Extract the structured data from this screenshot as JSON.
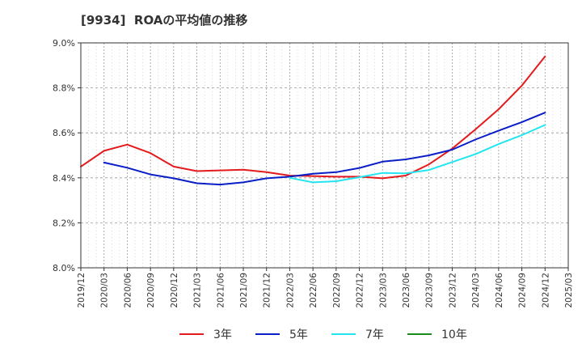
{
  "chart_data": {
    "type": "line",
    "title": "[9934]  ROAの平均値の推移",
    "xlabel": "",
    "ylabel": "",
    "x_ticks": [
      "2019/12",
      "2020/03",
      "2020/06",
      "2020/09",
      "2020/12",
      "2021/03",
      "2021/06",
      "2021/09",
      "2021/12",
      "2022/03",
      "2022/06",
      "2022/09",
      "2022/12",
      "2023/03",
      "2023/06",
      "2023/09",
      "2023/12",
      "2024/03",
      "2024/06",
      "2024/09",
      "2024/12",
      "2025/03"
    ],
    "y_ticks": [
      "8.0%",
      "8.2%",
      "8.4%",
      "8.6%",
      "8.8%",
      "9.0%"
    ],
    "ylim": [
      8.0,
      9.0
    ],
    "grid": true,
    "legend_position": "bottom",
    "series": [
      {
        "name": "3年",
        "color": "#e41a1c",
        "start_index": 0,
        "values": [
          8.45,
          8.52,
          8.548,
          8.51,
          8.45,
          8.43,
          8.433,
          8.436,
          8.425,
          8.41,
          8.408,
          8.405,
          8.405,
          8.398,
          8.41,
          8.46,
          8.53,
          8.615,
          8.705,
          8.81,
          8.94
        ]
      },
      {
        "name": "5年",
        "color": "#0a1ec8",
        "start_index": 1,
        "values": [
          8.468,
          8.445,
          8.415,
          8.398,
          8.376,
          8.37,
          8.38,
          8.398,
          8.405,
          8.418,
          8.425,
          8.444,
          8.472,
          8.482,
          8.5,
          8.525,
          8.57,
          8.61,
          8.648,
          8.69
        ]
      },
      {
        "name": "7年",
        "color": "#22e5f0",
        "start_index": 9,
        "values": [
          8.4,
          8.38,
          8.385,
          8.403,
          8.422,
          8.42,
          8.435,
          8.47,
          8.505,
          8.55,
          8.59,
          8.635
        ]
      },
      {
        "name": "10年",
        "color": "#1a8a1a",
        "start_index": 0,
        "values": []
      }
    ]
  }
}
